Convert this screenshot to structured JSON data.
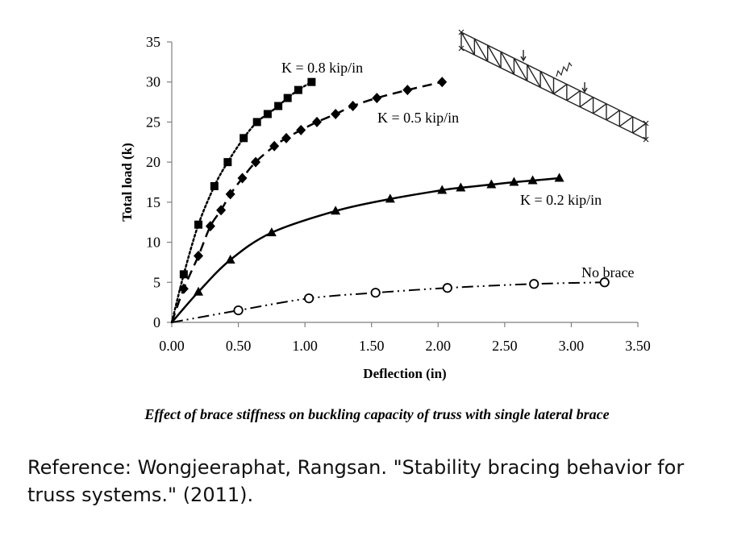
{
  "chart_data": {
    "type": "line",
    "xlabel": "Deflection (in)",
    "ylabel": "Total load (k)",
    "xlim": [
      0,
      3.5
    ],
    "ylim": [
      0,
      35
    ],
    "xticks": [
      "0.00",
      "0.50",
      "1.00",
      "1.50",
      "2.00",
      "2.50",
      "3.00",
      "3.50"
    ],
    "yticks": [
      "0",
      "5",
      "10",
      "15",
      "20",
      "25",
      "30",
      "35"
    ],
    "grid": false,
    "series": [
      {
        "name": "K = 0.8 kip/in",
        "marker": "square",
        "line": "dotted",
        "x": [
          0,
          0.09,
          0.2,
          0.32,
          0.42,
          0.54,
          0.64,
          0.72,
          0.8,
          0.87,
          0.95,
          1.05
        ],
        "y": [
          0,
          6,
          12.2,
          17,
          20,
          23,
          25,
          26,
          27,
          28,
          29,
          30
        ]
      },
      {
        "name": "K = 0.5 kip/in",
        "marker": "diamond",
        "line": "dashed",
        "x": [
          0,
          0.09,
          0.2,
          0.29,
          0.37,
          0.44,
          0.53,
          0.63,
          0.77,
          0.86,
          0.97,
          1.09,
          1.23,
          1.36,
          1.54,
          1.77,
          2.03
        ],
        "y": [
          0,
          4.2,
          8.3,
          12,
          14,
          16,
          18,
          20,
          22,
          23,
          24,
          25,
          26,
          27,
          28,
          29,
          30
        ]
      },
      {
        "name": "K = 0.2 kip/in",
        "marker": "triangle",
        "line": "solid",
        "x": [
          0,
          0.2,
          0.44,
          0.75,
          1.23,
          1.64,
          2.03,
          2.17,
          2.4,
          2.57,
          2.71,
          2.91
        ],
        "y": [
          0,
          3.8,
          7.8,
          11.2,
          13.9,
          15.4,
          16.5,
          16.8,
          17.2,
          17.5,
          17.7,
          18
        ]
      },
      {
        "name": "No brace",
        "marker": "circle-open",
        "line": "dash-dot-dot",
        "x": [
          0,
          0.5,
          1.03,
          1.53,
          2.07,
          2.72,
          3.25
        ],
        "y": [
          0,
          1.5,
          3,
          3.7,
          4.3,
          4.8,
          5
        ]
      }
    ],
    "annotations": [
      "K = 0.8 kip/in",
      "K = 0.5 kip/in",
      "K = 0.2 kip/in",
      "No brace"
    ]
  },
  "caption": "Effect of brace stiffness on buckling capacity of truss with single lateral brace",
  "reference": "Reference: Wongjeeraphat, Rangsan. \"Stability bracing behavior for truss systems.\" (2011)."
}
